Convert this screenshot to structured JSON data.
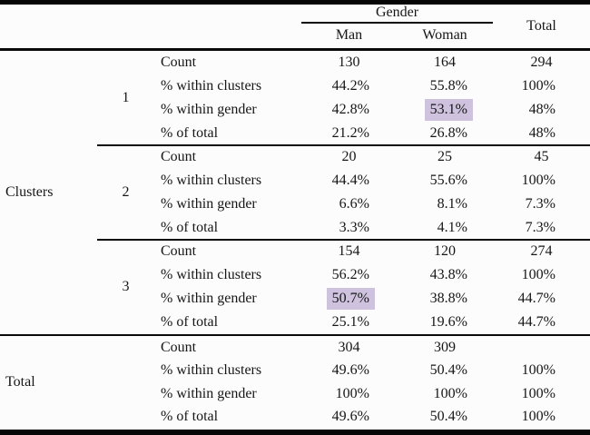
{
  "header": {
    "group_label": "Gender",
    "col_man": "Man",
    "col_woman": "Woman",
    "total_label": "Total"
  },
  "groups": {
    "clusters_label": "Clusters",
    "clusters": [
      {
        "id": "1",
        "rows": [
          {
            "label": "Count",
            "man": "130",
            "woman": "164",
            "total": "294"
          },
          {
            "label": "% within clusters",
            "man": "44.2%",
            "woman": "55.8%",
            "total": "100%"
          },
          {
            "label": "% within gender",
            "man": "42.8%",
            "woman": "53.1%",
            "total": "48%"
          },
          {
            "label": "% of total",
            "man": "21.2%",
            "woman": "26.8%",
            "total": "48%"
          }
        ]
      },
      {
        "id": "2",
        "rows": [
          {
            "label": "Count",
            "man": "20",
            "woman": "25",
            "total": "45"
          },
          {
            "label": "% within clusters",
            "man": "44.4%",
            "woman": "55.6%",
            "total": "100%"
          },
          {
            "label": "% within gender",
            "man": "6.6%",
            "woman": "8.1%",
            "total": "7.3%"
          },
          {
            "label": "% of total",
            "man": "3.3%",
            "woman": "4.1%",
            "total": "7.3%"
          }
        ]
      },
      {
        "id": "3",
        "rows": [
          {
            "label": "Count",
            "man": "154",
            "woman": "120",
            "total": "274"
          },
          {
            "label": "% within clusters",
            "man": "56.2%",
            "woman": "43.8%",
            "total": "100%"
          },
          {
            "label": "% within gender",
            "man": "50.7%",
            "woman": "38.8%",
            "total": "44.7%"
          },
          {
            "label": "% of total",
            "man": "25.1%",
            "woman": "19.6%",
            "total": "44.7%"
          }
        ]
      }
    ],
    "total_label": "Total",
    "total": {
      "rows": [
        {
          "label": "Count",
          "man": "304",
          "woman": "309",
          "total": ""
        },
        {
          "label": "% within clusters",
          "man": "49.6%",
          "woman": "50.4%",
          "total": "100%"
        },
        {
          "label": "% within gender",
          "man": "100%",
          "woman": "100%",
          "total": "100%"
        },
        {
          "label": "% of total",
          "man": "49.6%",
          "woman": "50.4%",
          "total": "100%"
        }
      ]
    }
  },
  "highlight": {
    "color": "#cec2df",
    "cells": [
      "cluster 1 / % within gender / woman",
      "cluster 3 / % within gender / man"
    ]
  }
}
